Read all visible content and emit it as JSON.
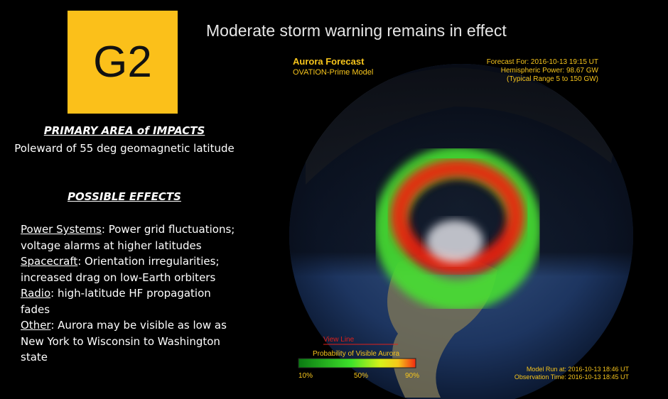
{
  "badge": {
    "label": "G2"
  },
  "title": "Moderate storm warning remains in effect",
  "impacts": {
    "heading": "PRIMARY AREA of IMPACTS",
    "text": "Poleward of 55 deg geomagnetic latitude"
  },
  "effects": {
    "heading": "POSSIBLE EFFECTS",
    "items": [
      {
        "label": "Power Systems",
        "text": ": Power grid fluctuations; voltage alarms at higher latitudes"
      },
      {
        "label": "Spacecraft",
        "text": ": Orientation irregularities; increased drag on low-Earth orbiters"
      },
      {
        "label": "Radio",
        "text": ": high-latitude HF propagation fades"
      },
      {
        "label": "Other",
        "text": ": Aurora may be visible as low as New York to Wisconsin to Washington state"
      }
    ]
  },
  "map": {
    "title": "Aurora Forecast",
    "model": "OVATION-Prime Model",
    "forecast_for": "Forecast For: 2016-10-13 19:15 UT",
    "hemispheric_power": "Hemispheric Power: 98.67 GW",
    "typical_range": "(Typical Range 5 to 150 GW)",
    "view_line": "View Line",
    "legend_title": "Probability of Visible Aurora",
    "legend_ticks": [
      "10%",
      "50%",
      "90%"
    ],
    "model_run": "Model Run at: 2016-10-13 18:46 UT",
    "observation_time": "Observation Time: 2016-10-13 18:45 UT"
  }
}
